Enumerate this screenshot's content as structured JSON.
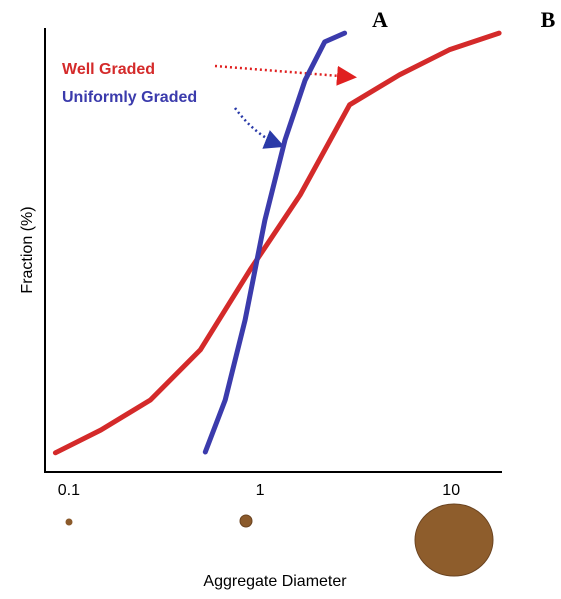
{
  "chart_data": {
    "type": "line",
    "xlabel": "Aggregate Diameter",
    "ylabel": "Fraction (%)",
    "annotations": [
      "A",
      "B"
    ],
    "xscale": "log",
    "grid": false,
    "xlim": [
      0.075,
      18
    ],
    "ylim": [
      0,
      100
    ],
    "xticks": [
      0.1,
      1,
      10
    ],
    "series": [
      {
        "name": "Well Graded",
        "color": "#d42a2a",
        "x": [
          0.085,
          0.147,
          0.267,
          0.487,
          0.887,
          1.62,
          2.94,
          5.36,
          9.77,
          17.8
        ],
        "values": [
          3.9,
          9.1,
          15.9,
          27.3,
          45.5,
          62.5,
          83,
          89.8,
          95.5,
          99.3
        ]
      },
      {
        "name": "Uniformly Graded",
        "color": "#3b3bac",
        "x": [
          0.517,
          0.657,
          0.835,
          1.06,
          1.35,
          1.72,
          2.18,
          2.77
        ],
        "values": [
          4.1,
          15.9,
          34.1,
          56.8,
          75,
          88.6,
          97.3,
          99.3
        ]
      }
    ]
  }
}
